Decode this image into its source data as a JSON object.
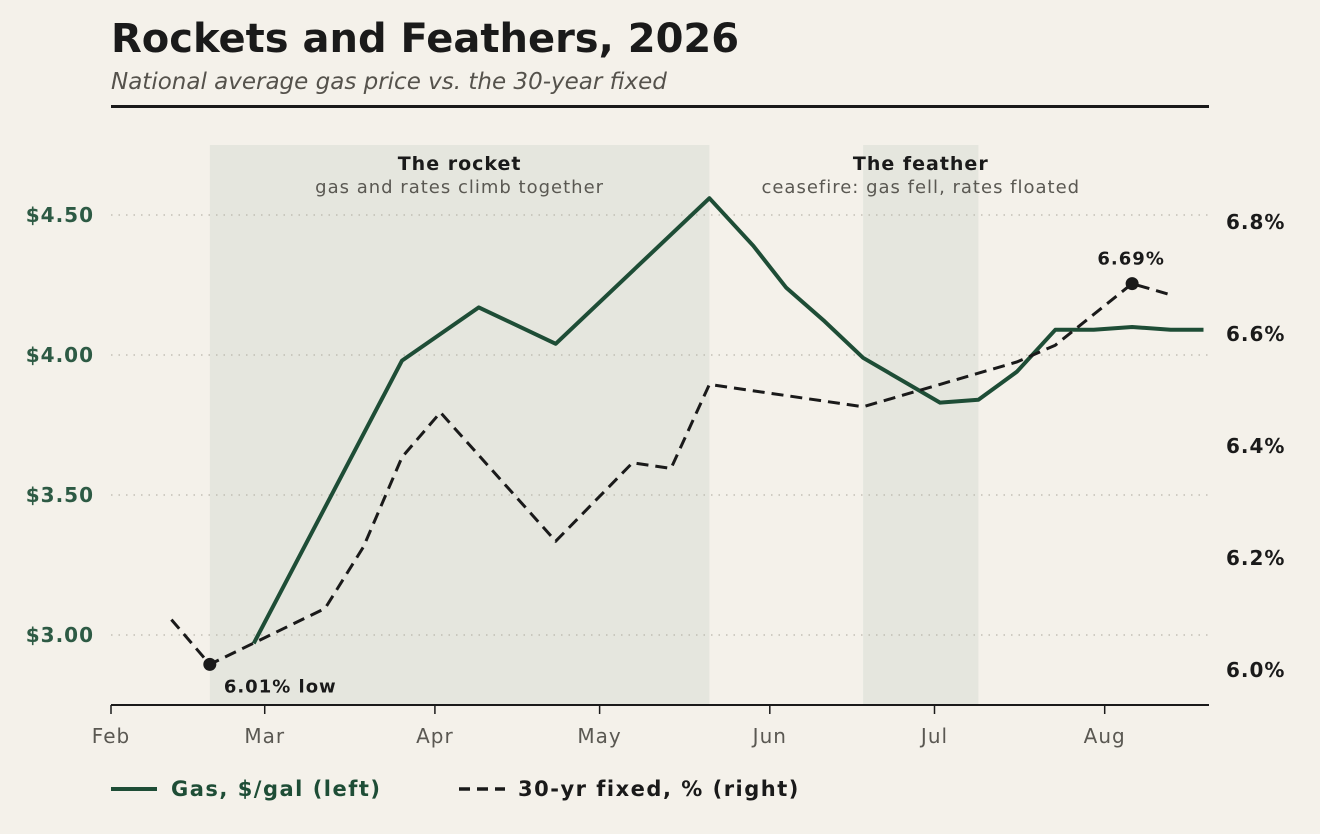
{
  "header": {
    "title": "Rockets and Feathers, 2026",
    "subtitle": "National average gas price vs. the 30-year fixed"
  },
  "colors": {
    "background": "#f4f1ea",
    "gas_line": "#1e4d36",
    "rate_line": "#1a1a1a",
    "shade_band": "#e5e6de",
    "left_axis_text": "#2d5a44"
  },
  "legend": {
    "gas_label": "Gas, $/gal (left)",
    "rate_label": "30-yr fixed, % (right)"
  },
  "chart_data": {
    "type": "line",
    "title": "Rockets and Feathers, 2026",
    "subtitle": "National average gas price vs. the 30-year fixed",
    "x_ticks": [
      "Feb",
      "Mar",
      "Apr",
      "May",
      "Jun",
      "Jul",
      "Aug"
    ],
    "x_tick_dates": [
      "2026-02-01",
      "2026-03-01",
      "2026-04-01",
      "2026-05-01",
      "2026-06-01",
      "2026-07-01",
      "2026-08-01"
    ],
    "xlim": [
      "2026-02-01",
      "2026-08-20"
    ],
    "y_left": {
      "ticks": [
        3.0,
        3.5,
        4.0,
        4.5
      ],
      "tick_labels": [
        "$3.00",
        "$3.50",
        "$4.00",
        "$4.50"
      ],
      "range": [
        2.75,
        4.75
      ],
      "grid": true
    },
    "y_right": {
      "ticks": [
        6.0,
        6.2,
        6.4,
        6.6,
        6.8
      ],
      "tick_labels": [
        "6.0%",
        "6.2%",
        "6.4%",
        "6.6%",
        "6.8%"
      ],
      "range": [
        5.9375,
        6.9375
      ]
    },
    "series": [
      {
        "name": "Gas, $/gal (left)",
        "axis": "left",
        "style": "solid",
        "points": [
          {
            "x": "2026-02-27",
            "y": 2.97
          },
          {
            "x": "2026-03-26",
            "y": 3.98
          },
          {
            "x": "2026-04-09",
            "y": 4.17
          },
          {
            "x": "2026-04-23",
            "y": 4.04
          },
          {
            "x": "2026-05-21",
            "y": 4.56
          },
          {
            "x": "2026-05-29",
            "y": 4.39
          },
          {
            "x": "2026-06-04",
            "y": 4.24
          },
          {
            "x": "2026-06-11",
            "y": 4.12
          },
          {
            "x": "2026-06-18",
            "y": 3.99
          },
          {
            "x": "2026-07-02",
            "y": 3.83
          },
          {
            "x": "2026-07-09",
            "y": 3.84
          },
          {
            "x": "2026-07-16",
            "y": 3.94
          },
          {
            "x": "2026-07-23",
            "y": 4.09
          },
          {
            "x": "2026-07-30",
            "y": 4.09
          },
          {
            "x": "2026-08-06",
            "y": 4.1
          },
          {
            "x": "2026-08-13",
            "y": 4.09
          },
          {
            "x": "2026-08-19",
            "y": 4.09
          }
        ]
      },
      {
        "name": "30-yr fixed, % (right)",
        "axis": "right",
        "style": "dashed",
        "points": [
          {
            "x": "2026-02-12",
            "y": 6.09
          },
          {
            "x": "2026-02-19",
            "y": 6.01
          },
          {
            "x": "2026-03-12",
            "y": 6.11
          },
          {
            "x": "2026-03-19",
            "y": 6.22
          },
          {
            "x": "2026-03-26",
            "y": 6.38
          },
          {
            "x": "2026-04-02",
            "y": 6.46
          },
          {
            "x": "2026-04-23",
            "y": 6.23
          },
          {
            "x": "2026-05-07",
            "y": 6.37
          },
          {
            "x": "2026-05-14",
            "y": 6.36
          },
          {
            "x": "2026-05-21",
            "y": 6.51
          },
          {
            "x": "2026-06-18",
            "y": 6.47
          },
          {
            "x": "2026-07-02",
            "y": 6.51
          },
          {
            "x": "2026-07-16",
            "y": 6.55
          },
          {
            "x": "2026-07-23",
            "y": 6.58
          },
          {
            "x": "2026-08-06",
            "y": 6.69
          },
          {
            "x": "2026-08-13",
            "y": 6.67
          }
        ]
      }
    ],
    "shaded_regions": [
      {
        "label": "The rocket",
        "sublabel": "gas and rates climb together",
        "start": "2026-02-19",
        "end": "2026-05-21"
      },
      {
        "label": "The feather",
        "sublabel": "ceasefire: gas fell, rates floated",
        "start": "2026-06-18",
        "end": "2026-07-09"
      }
    ],
    "annotations": [
      {
        "text": "6.01% low",
        "x": "2026-02-19",
        "y": 6.01,
        "axis": "right"
      },
      {
        "text": "6.69%",
        "x": "2026-08-06",
        "y": 6.69,
        "axis": "right"
      }
    ],
    "legend_position": "bottom-left"
  }
}
